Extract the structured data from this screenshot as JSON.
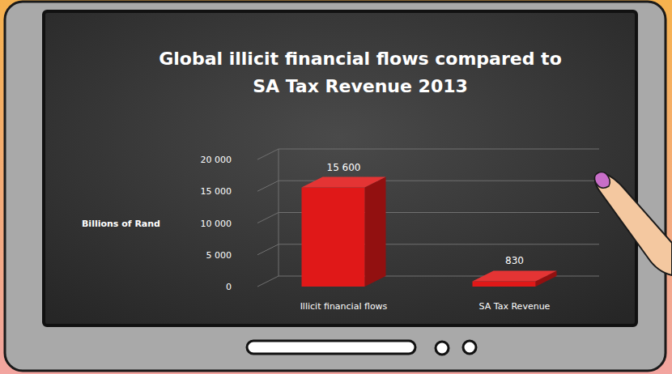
{
  "chart_data": {
    "type": "bar",
    "title": "Global illicit financial flows compared to SA Tax Revenue 2013",
    "ylabel": "Billions of Rand",
    "categories": [
      "Illicit financial flows",
      "SA Tax Revenue"
    ],
    "values": [
      15600,
      830
    ],
    "value_labels": [
      "15 600",
      "830"
    ],
    "color": "#e01818",
    "ylim": [
      0,
      20000
    ],
    "yticks": [
      0,
      {
        "value": 5000,
        "label": "5 000"
      },
      {
        "value": 10000,
        "label": "10 000"
      },
      {
        "value": 15000,
        "label": "15 000"
      },
      {
        "value": 20000,
        "label": "20 000"
      }
    ],
    "grid": true,
    "data_labels": true
  }
}
